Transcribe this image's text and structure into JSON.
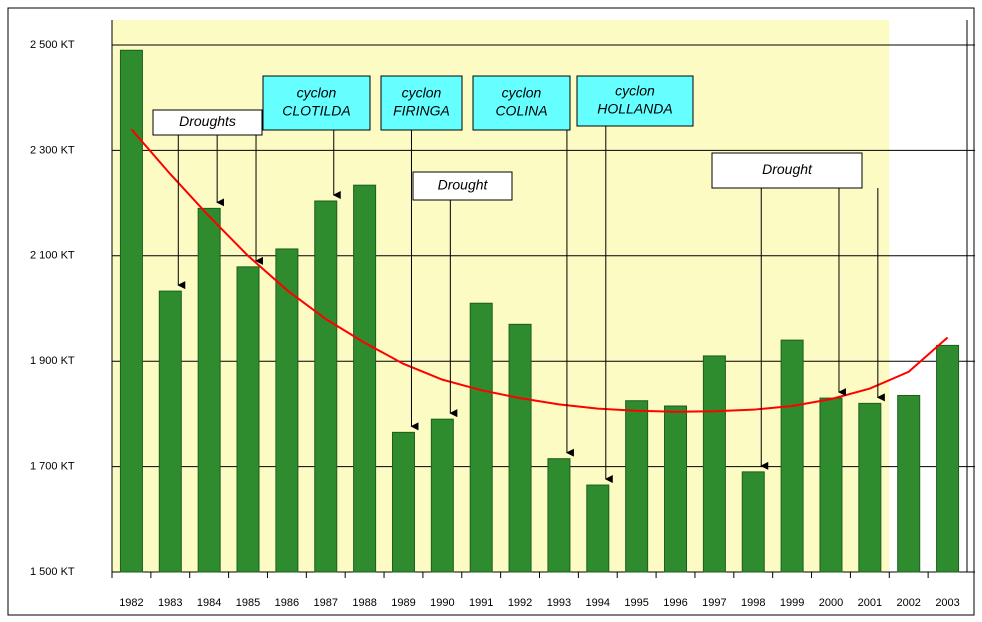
{
  "chart_data": {
    "type": "bar",
    "categories": [
      "1982",
      "1983",
      "1984",
      "1985",
      "1986",
      "1987",
      "1988",
      "1989",
      "1990",
      "1991",
      "1992",
      "1993",
      "1994",
      "1995",
      "1996",
      "1997",
      "1998",
      "1999",
      "2000",
      "2001",
      "2002",
      "2003"
    ],
    "values": [
      2490,
      2033,
      2190,
      2079,
      2113,
      2204,
      2234,
      1765,
      1790,
      2010,
      1970,
      1715,
      1665,
      1825,
      1815,
      1910,
      1690,
      1940,
      1830,
      1820,
      1835,
      1930
    ],
    "color": "#2e8b2e",
    "trend": {
      "color": "#ff0000",
      "values": [
        2340,
        2255,
        2175,
        2100,
        2035,
        1980,
        1935,
        1895,
        1865,
        1845,
        1830,
        1818,
        1810,
        1806,
        1804,
        1805,
        1808,
        1815,
        1828,
        1848,
        1880,
        1945
      ]
    },
    "ylim": [
      1500,
      2500
    ],
    "yticks": [
      {
        "value": 1500,
        "label": "1 500 KT"
      },
      {
        "value": 1700,
        "label": "1 700 KT"
      },
      {
        "value": 1900,
        "label": "1 900 KT"
      },
      {
        "value": 2100,
        "label": "2 100 KT"
      },
      {
        "value": 2300,
        "label": "2 300 KT"
      },
      {
        "value": 2500,
        "label": "2 500 KT"
      }
    ],
    "grid": true,
    "annotations": [
      {
        "lines": [
          "Droughts"
        ]
      },
      {
        "lines": [
          "cyclon",
          "CLOTILDA"
        ]
      },
      {
        "lines": [
          "cyclon",
          "FIRINGA"
        ]
      },
      {
        "lines": [
          "Drought"
        ]
      },
      {
        "lines": [
          "cyclon",
          "COLINA"
        ]
      },
      {
        "lines": [
          "cyclon",
          "HOLLANDA"
        ]
      },
      {
        "lines": [
          "Drought"
        ]
      }
    ]
  }
}
